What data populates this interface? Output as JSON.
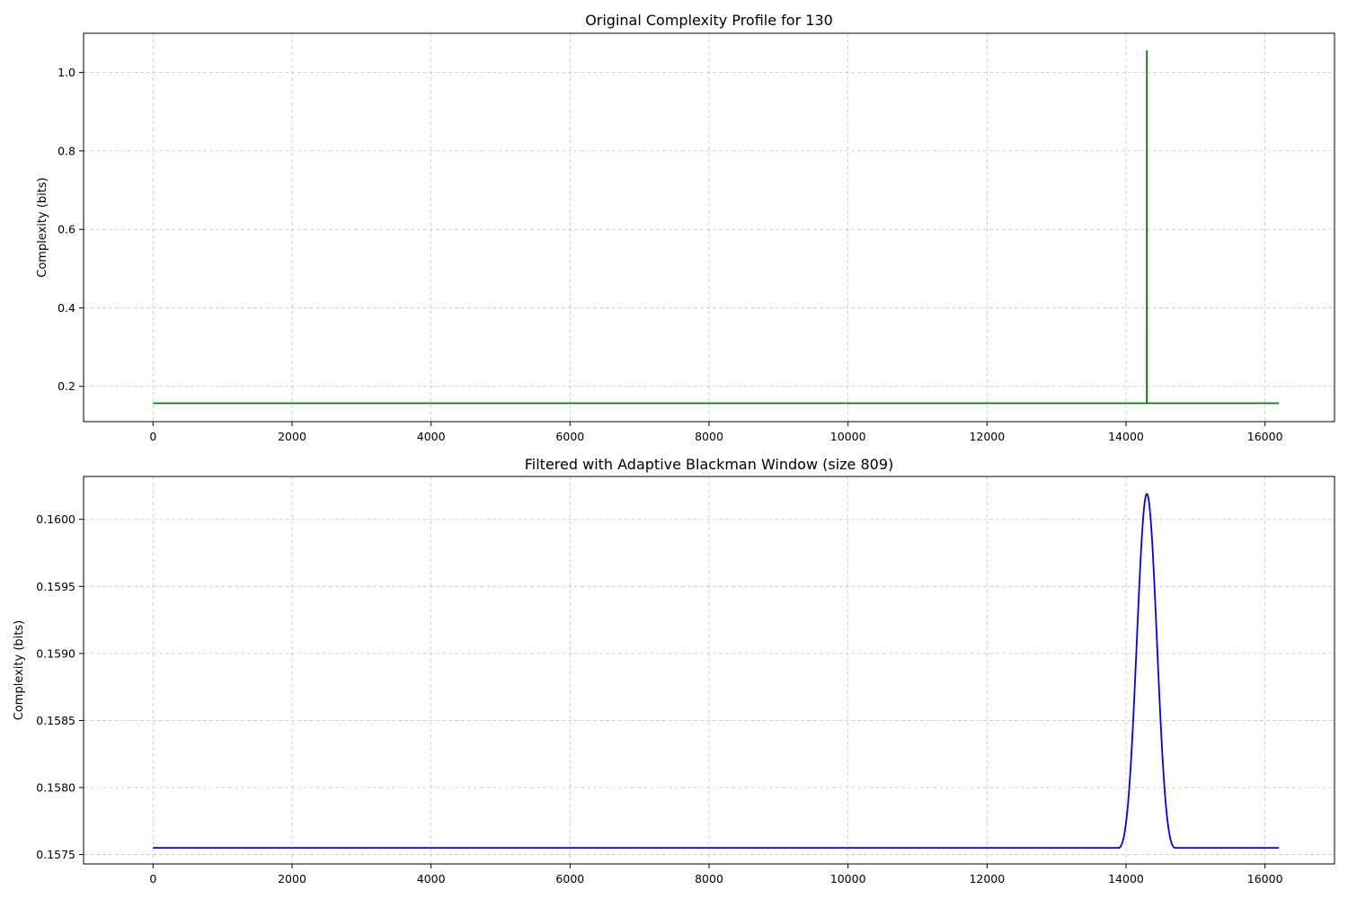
{
  "chart_data": [
    {
      "type": "line",
      "title": "Original Complexity Profile for 130",
      "xlabel": "",
      "ylabel": "Complexity (bits)",
      "xlim": [
        -1000,
        17000
      ],
      "ylim": [
        0.11,
        1.1
      ],
      "xticks": [
        0,
        2000,
        4000,
        6000,
        8000,
        10000,
        12000,
        14000,
        16000
      ],
      "yticks": [
        0.2,
        0.4,
        0.6,
        0.8,
        1.0
      ],
      "ytick_labels": [
        "0.2",
        "0.4",
        "0.6",
        "0.8",
        "1.0"
      ],
      "grid": true,
      "series": [
        {
          "color": "#008000",
          "x": [
            0,
            14299,
            14300,
            14301,
            16200
          ],
          "y": [
            0.157,
            0.157,
            1.055,
            0.157,
            0.157
          ]
        }
      ]
    },
    {
      "type": "line",
      "title": "Filtered with Adaptive Blackman Window (size 809)",
      "xlabel": "",
      "ylabel": "Complexity (bits)",
      "xlim": [
        -1000,
        17000
      ],
      "ylim": [
        0.15743,
        0.16032
      ],
      "xticks": [
        0,
        2000,
        4000,
        6000,
        8000,
        10000,
        12000,
        14000,
        16000
      ],
      "yticks": [
        0.1575,
        0.158,
        0.1585,
        0.159,
        0.1595,
        0.16
      ],
      "ytick_labels": [
        "0.1575",
        "0.1580",
        "0.1585",
        "0.1590",
        "0.1595",
        "0.1600"
      ],
      "grid": true,
      "series": [
        {
          "color": "#0000ff",
          "baseline": 0.15755,
          "peak": 0.16019,
          "peak_x": 14300,
          "window_size": 809,
          "x_end": 16200
        }
      ]
    }
  ]
}
